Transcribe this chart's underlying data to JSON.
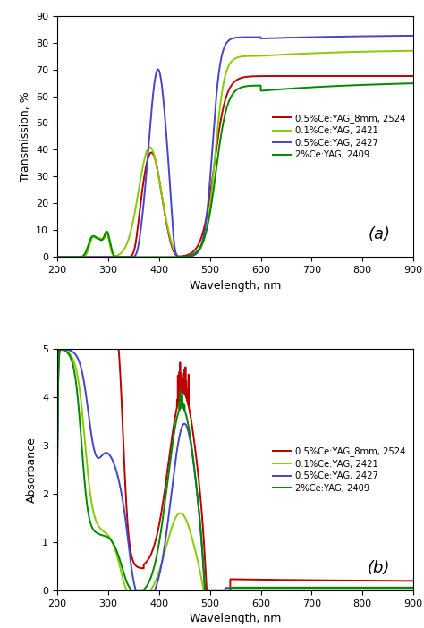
{
  "xlim": [
    200,
    900
  ],
  "xlabel": "Wavelength, nm",
  "panel_a": {
    "ylabel": "Transmission, %",
    "ylim": [
      0,
      90
    ],
    "yticks": [
      0,
      10,
      20,
      30,
      40,
      50,
      60,
      70,
      80,
      90
    ],
    "label": "(a)"
  },
  "panel_b": {
    "ylabel": "Absorbance",
    "ylim": [
      0,
      5
    ],
    "yticks": [
      0,
      1,
      2,
      3,
      4,
      5
    ],
    "label": "(b)"
  },
  "legend_entries": [
    "0.5%Ce:YAG_8mm, 2524",
    "0.1%Ce:YAG, 2421",
    "0.5%Ce:YAG, 2427",
    "2%Ce:YAG, 2409"
  ],
  "colors": {
    "red": "#bb0000",
    "light_green": "#88cc00",
    "blue": "#4444cc",
    "dark_green": "#008800"
  },
  "linewidth": 1.4,
  "background_color": "#ffffff"
}
